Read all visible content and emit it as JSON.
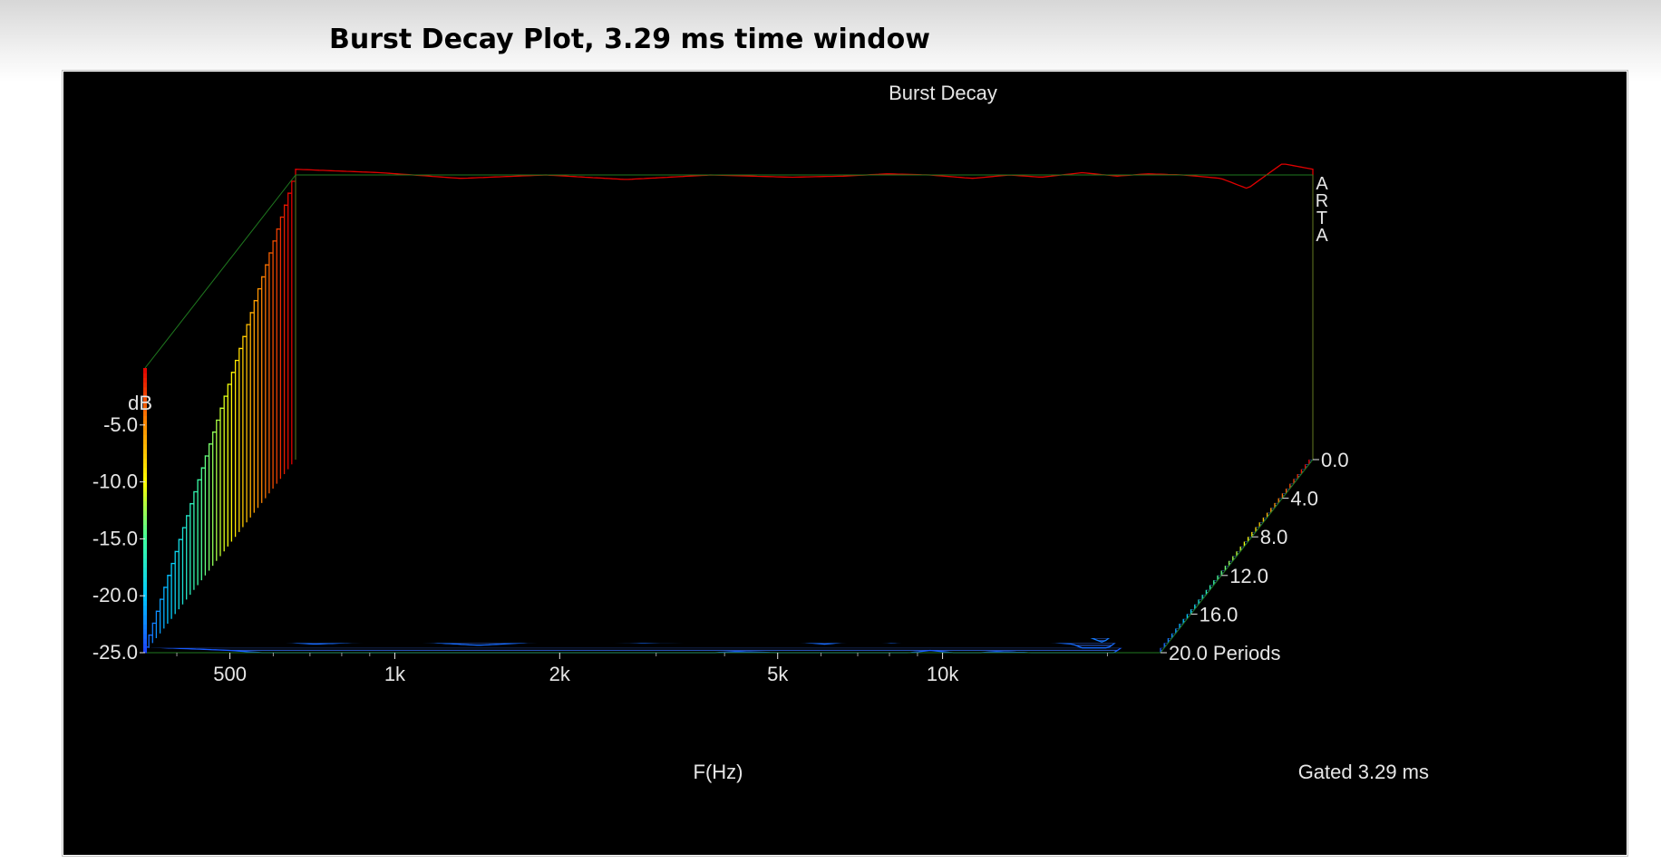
{
  "page_title": "Burst Decay Plot, 3.29 ms time window",
  "colors": {
    "background": "#000000",
    "frame_line": "#1f7a1f",
    "text": "#e6e6e6",
    "floor_line": "#2f5fd0"
  },
  "chart_data": {
    "type": "burst-decay-waterfall",
    "title": "Burst Decay",
    "watermark": "ARTA",
    "x_axis": {
      "label": "F(Hz)",
      "scale": "log",
      "range": [
        350,
        25000
      ],
      "ticks": [
        {
          "value": 500,
          "label": "500"
        },
        {
          "value": 1000,
          "label": "1k"
        },
        {
          "value": 2000,
          "label": "2k"
        },
        {
          "value": 5000,
          "label": "5k"
        },
        {
          "value": 10000,
          "label": "10k"
        }
      ]
    },
    "y_axis": {
      "label": "dB",
      "range": [
        -25,
        0
      ],
      "ticks": [
        {
          "value": -5,
          "label": "-5.0"
        },
        {
          "value": -10,
          "label": "-10.0"
        },
        {
          "value": -15,
          "label": "-15.0"
        },
        {
          "value": -20,
          "label": "-20.0"
        },
        {
          "value": -25,
          "label": "-25.0"
        }
      ]
    },
    "z_axis": {
      "unit": "Periods",
      "range": [
        0,
        20
      ],
      "ticks": [
        {
          "value": 0,
          "label": "0.0"
        },
        {
          "value": 4,
          "label": "4.0"
        },
        {
          "value": 8,
          "label": "8.0"
        },
        {
          "value": 12,
          "label": "12.0"
        },
        {
          "value": 16,
          "label": "16.0"
        },
        {
          "value": 20,
          "label": "20.0 Periods"
        }
      ]
    },
    "gate_label": "Gated 3.29 ms",
    "colormap": [
      "#1e40ff",
      "#00c8ff",
      "#3dff9f",
      "#ffff00",
      "#ff8c00",
      "#e00000"
    ],
    "decay_rate_db_per_period": 1.25,
    "response_level_db": {
      "freq_hz": [
        350,
        500,
        700,
        1000,
        1400,
        2000,
        2800,
        3500,
        4200,
        5000,
        6000,
        7000,
        8000,
        9500,
        11000,
        12500,
        14500,
        17000,
        19000,
        22000,
        25000
      ],
      "level_db": [
        0.5,
        0.2,
        -0.3,
        0.0,
        -0.4,
        0.0,
        -0.2,
        -0.1,
        0.1,
        0.0,
        -0.3,
        0.0,
        -0.2,
        0.2,
        -0.1,
        0.1,
        0.0,
        -0.3,
        -1.2,
        1.0,
        0.5
      ]
    }
  }
}
